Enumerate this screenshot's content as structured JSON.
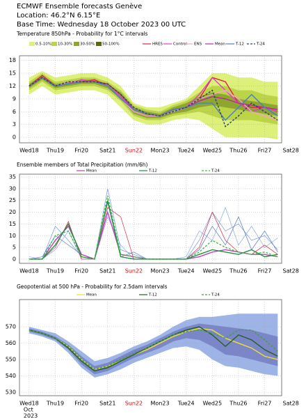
{
  "header": {
    "title": "ECMWF Ensemble forecasts Genève",
    "location": "Location: 46.2°N 6.15°E",
    "base_time": "Base Time: Wednesday 18 October 2023 00 UTC"
  },
  "chart_data": [
    {
      "type": "line",
      "title": "Temperature 850hPa - Probability for 1°C intervals",
      "x": [
        0,
        0.5,
        1,
        1.5,
        2,
        2.5,
        3,
        3.5,
        4,
        4.5,
        5,
        5.5,
        6,
        6.5,
        7,
        7.5,
        8,
        8.5,
        9,
        9.5
      ],
      "xlim": [
        -0.37,
        9.65
      ],
      "xticks": [
        {
          "value": 0,
          "label": "Wed18"
        },
        {
          "value": 1,
          "label": "Thu19"
        },
        {
          "value": 2,
          "label": "Fri20"
        },
        {
          "value": 3,
          "label": "Sat21"
        },
        {
          "value": 4,
          "label": "Sun22"
        },
        {
          "value": 5,
          "label": "Mon23"
        },
        {
          "value": 6,
          "label": "Tue24"
        },
        {
          "value": 7,
          "label": "Wed25"
        },
        {
          "value": 8,
          "label": "Thu26"
        },
        {
          "value": 9,
          "label": "Fri27"
        },
        {
          "value": 10,
          "label": "Sat28"
        }
      ],
      "ylim": [
        -1.3,
        19.1
      ],
      "yticks": [
        0,
        3,
        6,
        9,
        12,
        15,
        18
      ],
      "grid": true,
      "bands": [
        {
          "name": "0.5-10%",
          "color": "#dcf07a",
          "low": [
            10,
            12,
            10,
            10.5,
            11,
            11,
            10,
            7,
            4,
            3,
            3,
            4,
            4.5,
            4,
            2,
            0,
            0,
            0,
            0,
            -0.5
          ],
          "high": [
            14,
            15.5,
            14,
            14.5,
            15,
            15,
            14,
            12,
            8,
            7,
            7,
            8,
            9,
            12,
            15,
            15,
            14,
            14,
            13,
            13
          ]
        },
        {
          "name": "10-30%",
          "color": "#bcd448",
          "low": [
            11,
            13,
            11,
            11.5,
            12,
            12,
            11,
            8.5,
            5,
            4,
            4,
            5,
            5.5,
            6,
            5,
            4,
            4,
            4,
            3.5,
            3
          ],
          "high": [
            13,
            15,
            13,
            13.5,
            14,
            14,
            13,
            11,
            7.5,
            6.5,
            6,
            7.5,
            8.5,
            10.5,
            12,
            12,
            11,
            11,
            10,
            9.5
          ]
        },
        {
          "name": "30-50%",
          "color": "#8ea62e",
          "low": [
            11.5,
            13.5,
            11.5,
            12,
            12.5,
            12.5,
            11.5,
            9,
            5.5,
            4.5,
            4.5,
            5.5,
            6,
            7,
            7.5,
            7,
            6.5,
            6,
            5.5,
            5
          ],
          "high": [
            12.5,
            14.5,
            12.5,
            13,
            13.5,
            13.5,
            12.5,
            10.5,
            7,
            6,
            5.5,
            7,
            8,
            9.5,
            10.5,
            10,
            9,
            8.5,
            8,
            7.5
          ]
        },
        {
          "name": "50-100%",
          "color": "#556b10",
          "low": [],
          "high": []
        }
      ],
      "series": [
        {
          "name": "HRES",
          "color": "#e0204a",
          "values": [
            12,
            14.5,
            12,
            13,
            13,
            13.5,
            12,
            9,
            6,
            5,
            5,
            6,
            7,
            9,
            14,
            13,
            8,
            7,
            7,
            6
          ]
        },
        {
          "name": "Control",
          "color": "#e040c0",
          "values": [
            12,
            14,
            12,
            12.5,
            13.5,
            13,
            12,
            9.5,
            6,
            5,
            5,
            6.5,
            7,
            10,
            14,
            11,
            8,
            6,
            7,
            6
          ]
        },
        {
          "name": "ENS",
          "color": "#f4a6c8",
          "values": [
            12,
            14,
            12,
            13,
            13,
            13,
            12,
            9,
            6,
            5,
            5,
            6,
            7,
            9,
            10,
            11,
            9,
            6,
            5,
            4
          ]
        },
        {
          "name": "Mean",
          "color": "#b82a98",
          "values": [
            12,
            14,
            12,
            12.5,
            13,
            13,
            12.5,
            10,
            6.5,
            5.5,
            5,
            6.5,
            7,
            8.5,
            9.5,
            9,
            8,
            7.5,
            7,
            6.5
          ]
        },
        {
          "name": "T-12",
          "color": "#4a80c0",
          "values": [
            12,
            14,
            12,
            12.5,
            13,
            13,
            12,
            9,
            6.5,
            5.5,
            5,
            6.5,
            7,
            8,
            8,
            4,
            7,
            10,
            7,
            5
          ]
        },
        {
          "name": "T-24",
          "color": "#304060",
          "dashed": true,
          "values": [
            12,
            14,
            12,
            13,
            13,
            13,
            12.5,
            10,
            7,
            5.5,
            5,
            6,
            7,
            9,
            11,
            2.5,
            5,
            8,
            6,
            4
          ]
        }
      ]
    },
    {
      "type": "line",
      "title": "Ensemble members of Total Precipitation (mm/6h)",
      "x": [
        0,
        0.5,
        1,
        1.5,
        2,
        2.5,
        3,
        3.5,
        4,
        4.5,
        5,
        5.5,
        6,
        6.5,
        7,
        7.5,
        8,
        8.5,
        9,
        9.5
      ],
      "xlim": [
        -0.37,
        9.65
      ],
      "xticks": [
        {
          "value": 0,
          "label": "Wed18"
        },
        {
          "value": 1,
          "label": "Thu19"
        },
        {
          "value": 2,
          "label": "Fri20"
        },
        {
          "value": 3,
          "label": "Sat21"
        },
        {
          "value": 4,
          "label": "Sun22"
        },
        {
          "value": 5,
          "label": "Mon23"
        },
        {
          "value": 6,
          "label": "Tue24"
        },
        {
          "value": 7,
          "label": "Wed25"
        },
        {
          "value": 8,
          "label": "Thu26"
        },
        {
          "value": 9,
          "label": "Fri27"
        },
        {
          "value": 10,
          "label": "Sat28"
        }
      ],
      "ylim": [
        -1.8,
        36.2
      ],
      "yticks": [
        0,
        5,
        10,
        15,
        20,
        25,
        30,
        35
      ],
      "grid": true,
      "series": [
        {
          "color": "#6f95e0",
          "values": [
            0,
            0,
            14,
            8,
            1,
            0,
            30,
            4,
            2,
            0,
            0,
            0,
            0,
            8,
            20,
            12,
            15,
            8,
            10,
            4
          ]
        },
        {
          "color": "#88a8e8",
          "values": [
            1,
            0,
            4,
            12,
            0,
            0,
            18,
            6,
            0,
            0,
            0,
            0,
            1,
            12,
            8,
            22,
            6,
            14,
            5,
            9
          ]
        },
        {
          "color": "#5078c8",
          "values": [
            0,
            1,
            10,
            6,
            2,
            0,
            24,
            1,
            3,
            0,
            0,
            0,
            0,
            4,
            14,
            6,
            18,
            4,
            12,
            3
          ]
        },
        {
          "color": "#e02040",
          "values": [
            0,
            0,
            5,
            16,
            0,
            0,
            22,
            18,
            0,
            0,
            0,
            0,
            0,
            5,
            20,
            8,
            3,
            2,
            6,
            2
          ]
        },
        {
          "name": "Mean",
          "color": "#c040c0",
          "values": [
            0,
            0,
            8,
            14,
            2,
            0,
            20,
            2,
            1,
            0,
            0,
            0,
            0,
            1,
            3,
            4,
            3,
            2,
            2,
            1
          ]
        },
        {
          "name": "T-12",
          "color": "#209040",
          "values": [
            0,
            0,
            6,
            15,
            1,
            0,
            25,
            1,
            0,
            0,
            0,
            0,
            0,
            2,
            4,
            3,
            2,
            4,
            1,
            2
          ]
        },
        {
          "name": "T-24",
          "color": "#40c040",
          "dashed": true,
          "values": [
            0,
            0,
            10,
            12,
            1,
            0,
            27,
            2,
            1,
            0,
            0,
            0,
            0,
            3,
            8,
            5,
            3,
            2,
            3,
            1
          ]
        }
      ]
    },
    {
      "type": "line",
      "title": "Geopotential at 500 hPa - Probability for 2.5dam intervals",
      "x": [
        0,
        0.5,
        1,
        1.5,
        2,
        2.5,
        3,
        3.5,
        4,
        4.5,
        5,
        5.5,
        6,
        6.5,
        7,
        7.5,
        8,
        8.5,
        9,
        9.5
      ],
      "xlim": [
        -0.37,
        9.65
      ],
      "xticks": [
        {
          "value": 0,
          "label": "Wed18"
        },
        {
          "value": 1,
          "label": "Thu19"
        },
        {
          "value": 2,
          "label": "Fri20"
        },
        {
          "value": 3,
          "label": "Sat21"
        },
        {
          "value": 4,
          "label": "Sun22"
        },
        {
          "value": 5,
          "label": "Mon23"
        },
        {
          "value": 6,
          "label": "Tue24"
        },
        {
          "value": 7,
          "label": "Wed25"
        },
        {
          "value": 8,
          "label": "Thu26"
        },
        {
          "value": 9,
          "label": "Fri27"
        },
        {
          "value": 10,
          "label": "Sat28"
        }
      ],
      "xtick_sublabels": [
        "Oct",
        "2023"
      ],
      "ylim": [
        527.9,
        586.6
      ],
      "yticks": [
        530,
        540,
        550,
        560,
        570
      ],
      "grid": true,
      "bands": [
        {
          "color": "#9fb4e6",
          "low": [
            566,
            564,
            561,
            554,
            545,
            539,
            541,
            544,
            548,
            551,
            554,
            557,
            558,
            556,
            550,
            546,
            545,
            543,
            541,
            540
          ],
          "high": [
            570,
            568,
            566,
            561,
            555,
            549,
            551,
            554,
            558,
            561,
            565,
            570,
            574,
            576,
            576,
            577,
            578,
            578,
            578,
            578
          ]
        },
        {
          "color": "#7b86c8",
          "low": [
            567,
            565,
            562,
            556,
            547,
            541,
            543,
            547,
            551,
            554,
            557,
            561,
            563,
            562,
            558,
            553,
            552,
            550,
            548,
            546
          ],
          "high": [
            569,
            567,
            564,
            559,
            552,
            546,
            548,
            552,
            556,
            559,
            563,
            567,
            570,
            572,
            571,
            570,
            569,
            568,
            566,
            564
          ]
        }
      ],
      "series": [
        {
          "name": "Mean",
          "color": "#f0e030",
          "values": [
            568,
            566,
            563,
            558,
            550,
            544,
            546,
            549,
            553,
            556,
            560,
            564,
            567,
            569,
            568,
            563,
            560,
            557,
            552,
            550
          ]
        },
        {
          "name": "T-12",
          "color": "#206020",
          "values": [
            568,
            566,
            563,
            557,
            549,
            543,
            545,
            549,
            553,
            557,
            561,
            565,
            568,
            570,
            565,
            558,
            565,
            562,
            556,
            552
          ]
        },
        {
          "name": "T-24",
          "color": "#40a040",
          "dashed": true,
          "values": [
            568,
            566,
            563,
            558,
            550,
            544,
            546,
            550,
            554,
            557,
            561,
            565,
            567,
            568,
            566,
            563,
            568,
            568,
            562,
            555
          ]
        }
      ]
    }
  ]
}
